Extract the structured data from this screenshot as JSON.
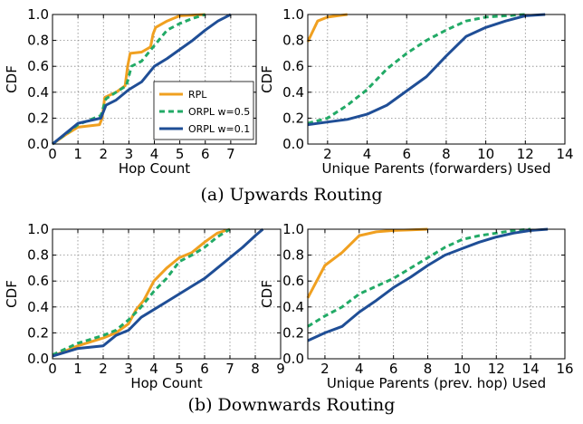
{
  "captions": {
    "a": "(a) Upwards Routing",
    "b": "(b) Downwards Routing"
  },
  "colors": {
    "RPL": "#f0a020",
    "ORPL w=0.5": "#22aa66",
    "ORPL w=0.1": "#1f4e96"
  },
  "chart_data": [
    {
      "type": "line",
      "xlabel": "Hop Count",
      "ylabel": "CDF",
      "xlim": [
        0,
        8
      ],
      "ylim": [
        0,
        1
      ],
      "xticks": [
        0,
        1,
        2,
        3,
        4,
        5,
        6,
        7
      ],
      "yticks": [
        0.0,
        0.2,
        0.4,
        0.6,
        0.8,
        1.0
      ],
      "grid": true,
      "legend": {
        "position": "center-right",
        "entries": [
          "RPL",
          "ORPL w=0.5",
          "ORPL w=0.1"
        ]
      },
      "series": [
        {
          "name": "RPL",
          "style": "solid",
          "x": [
            0,
            0.5,
            1,
            1.85,
            1.95,
            2.05,
            2.5,
            2.85,
            2.95,
            3.05,
            3.5,
            3.85,
            3.95,
            4.05,
            4.5,
            5,
            6
          ],
          "y": [
            0,
            0.07,
            0.13,
            0.15,
            0.2,
            0.36,
            0.4,
            0.45,
            0.6,
            0.7,
            0.71,
            0.75,
            0.85,
            0.9,
            0.95,
            0.99,
            1.0
          ]
        },
        {
          "name": "ORPL w=0.5",
          "style": "dashed",
          "x": [
            0,
            1,
            1.9,
            2.1,
            2.5,
            2.9,
            3.1,
            3.5,
            4,
            4.5,
            5,
            5.5,
            6
          ],
          "y": [
            0,
            0.15,
            0.22,
            0.35,
            0.4,
            0.45,
            0.6,
            0.64,
            0.76,
            0.88,
            0.93,
            0.97,
            1.0
          ]
        },
        {
          "name": "ORPL w=0.1",
          "style": "solid",
          "x": [
            0,
            0.5,
            1,
            1.9,
            2.1,
            2.5,
            3,
            3.5,
            4,
            4.5,
            5,
            5.5,
            6,
            6.5,
            7
          ],
          "y": [
            0,
            0.08,
            0.16,
            0.2,
            0.3,
            0.34,
            0.42,
            0.48,
            0.6,
            0.66,
            0.73,
            0.8,
            0.88,
            0.95,
            1.0
          ]
        }
      ]
    },
    {
      "type": "line",
      "xlabel": "Unique Parents (forwarders) Used",
      "ylabel": "CDF",
      "xlim": [
        1,
        14
      ],
      "ylim": [
        0,
        1
      ],
      "xticks": [
        2,
        4,
        6,
        8,
        10,
        12,
        14
      ],
      "yticks": [
        0.0,
        0.2,
        0.4,
        0.6,
        0.8,
        1.0
      ],
      "grid": true,
      "series": [
        {
          "name": "RPL",
          "style": "solid",
          "x": [
            1,
            1.5,
            2,
            2.5,
            3
          ],
          "y": [
            0.79,
            0.95,
            0.98,
            0.99,
            1.0
          ]
        },
        {
          "name": "ORPL w=0.5",
          "style": "dashed",
          "x": [
            1,
            2,
            3,
            4,
            5,
            6,
            7,
            8,
            9,
            10,
            11,
            12
          ],
          "y": [
            0.16,
            0.2,
            0.3,
            0.42,
            0.58,
            0.7,
            0.8,
            0.88,
            0.95,
            0.98,
            0.99,
            1.0
          ]
        },
        {
          "name": "ORPL w=0.1",
          "style": "solid",
          "x": [
            1,
            2,
            3,
            4,
            5,
            6,
            7,
            8,
            9,
            10,
            11,
            12,
            13
          ],
          "y": [
            0.15,
            0.17,
            0.19,
            0.23,
            0.3,
            0.41,
            0.52,
            0.68,
            0.83,
            0.9,
            0.95,
            0.99,
            1.0
          ]
        }
      ]
    },
    {
      "type": "line",
      "xlabel": "Hop Count",
      "ylabel": "CDF",
      "xlim": [
        0,
        9
      ],
      "ylim": [
        0,
        1
      ],
      "xticks": [
        0,
        1,
        2,
        3,
        4,
        5,
        6,
        7,
        8,
        9
      ],
      "yticks": [
        0.0,
        0.2,
        0.4,
        0.6,
        0.8,
        1.0
      ],
      "grid": true,
      "series": [
        {
          "name": "RPL",
          "style": "solid",
          "x": [
            0,
            1,
            2,
            2.5,
            3,
            3.3,
            3.6,
            4,
            4.5,
            5,
            5.5,
            6,
            6.5,
            7
          ],
          "y": [
            0.02,
            0.1,
            0.16,
            0.2,
            0.27,
            0.38,
            0.45,
            0.6,
            0.7,
            0.78,
            0.82,
            0.9,
            0.97,
            1.0
          ]
        },
        {
          "name": "ORPL w=0.5",
          "style": "dashed",
          "x": [
            0,
            1,
            2,
            2.5,
            3,
            3.5,
            4,
            4.5,
            5,
            5.5,
            6,
            6.5,
            7
          ],
          "y": [
            0.03,
            0.12,
            0.18,
            0.22,
            0.3,
            0.4,
            0.52,
            0.62,
            0.75,
            0.8,
            0.86,
            0.94,
            1.0
          ]
        },
        {
          "name": "ORPL w=0.1",
          "style": "solid",
          "x": [
            0,
            1,
            2,
            2.5,
            3,
            3.5,
            4,
            4.5,
            5,
            5.5,
            6,
            6.5,
            7,
            7.5,
            8,
            8.3
          ],
          "y": [
            0.02,
            0.08,
            0.1,
            0.18,
            0.22,
            0.32,
            0.38,
            0.44,
            0.5,
            0.56,
            0.62,
            0.7,
            0.78,
            0.86,
            0.95,
            1.0
          ]
        }
      ]
    },
    {
      "type": "line",
      "xlabel": "Unique Parents (prev. hop) Used",
      "ylabel": "CDF",
      "xlim": [
        1,
        16
      ],
      "ylim": [
        0,
        1
      ],
      "xticks": [
        2,
        4,
        6,
        8,
        10,
        12,
        14,
        16
      ],
      "yticks": [
        0.0,
        0.2,
        0.4,
        0.6,
        0.8,
        1.0
      ],
      "grid": true,
      "series": [
        {
          "name": "RPL",
          "style": "solid",
          "x": [
            1,
            2,
            3,
            4,
            5,
            6,
            7,
            8
          ],
          "y": [
            0.47,
            0.72,
            0.82,
            0.95,
            0.98,
            0.99,
            0.995,
            1.0
          ]
        },
        {
          "name": "ORPL w=0.5",
          "style": "dashed",
          "x": [
            1,
            2,
            3,
            4,
            5,
            6,
            7,
            8,
            9,
            10,
            11,
            12,
            13,
            14
          ],
          "y": [
            0.25,
            0.33,
            0.4,
            0.5,
            0.56,
            0.62,
            0.7,
            0.78,
            0.86,
            0.92,
            0.95,
            0.97,
            0.99,
            1.0
          ]
        },
        {
          "name": "ORPL w=0.1",
          "style": "solid",
          "x": [
            1,
            2,
            3,
            4,
            5,
            6,
            7,
            8,
            9,
            10,
            11,
            12,
            13,
            14,
            15
          ],
          "y": [
            0.14,
            0.2,
            0.25,
            0.36,
            0.45,
            0.55,
            0.63,
            0.72,
            0.8,
            0.85,
            0.9,
            0.94,
            0.97,
            0.99,
            1.0
          ]
        }
      ]
    }
  ]
}
